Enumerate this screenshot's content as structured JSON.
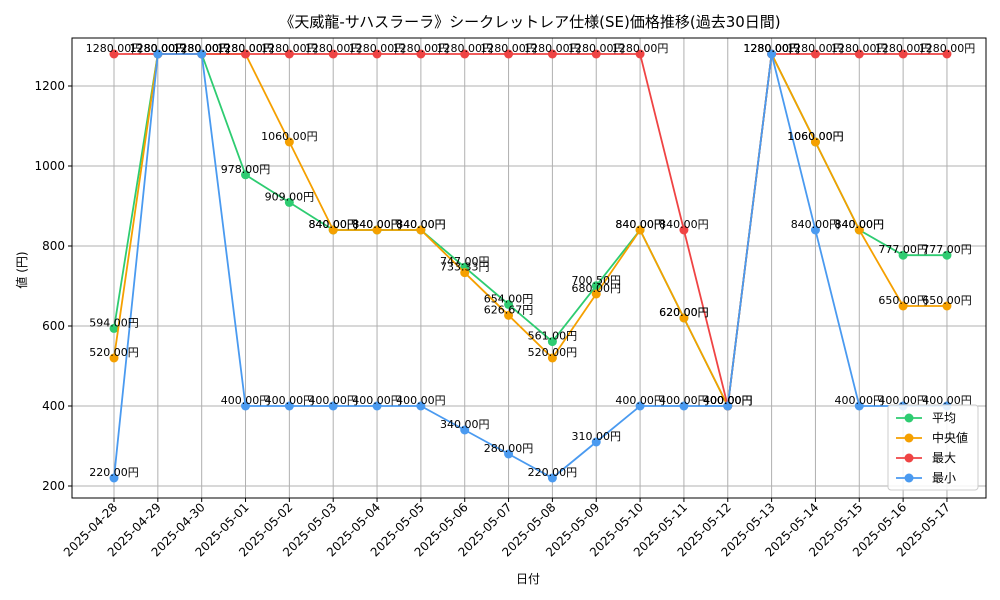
{
  "chart_data": {
    "type": "line",
    "title": "《天威龍-サハスラーラ》シークレットレア仕様(SE)価格推移(過去30日間)",
    "xlabel": "日付",
    "ylabel": "値 (円)",
    "ylim": [
      170,
      1320
    ],
    "yticks": [
      200,
      400,
      600,
      800,
      1000,
      1200
    ],
    "grid": true,
    "legend_position": "lower-right",
    "label_suffix": "円",
    "categories": [
      "2025-04-28",
      "2025-04-29",
      "2025-04-30",
      "2025-05-01",
      "2025-05-02",
      "2025-05-03",
      "2025-05-04",
      "2025-05-05",
      "2025-05-06",
      "2025-05-07",
      "2025-05-08",
      "2025-05-09",
      "2025-05-10",
      "2025-05-11",
      "2025-05-12",
      "2025-05-13",
      "2025-05-14",
      "2025-05-15",
      "2025-05-16",
      "2025-05-17"
    ],
    "series": [
      {
        "name": "平均",
        "color": "#2ecc71",
        "values": [
          594,
          1280,
          1280,
          978,
          909,
          840,
          840,
          840,
          747,
          654,
          561,
          700.5,
          840,
          620,
          400,
          1280,
          1060,
          840,
          777,
          777
        ],
        "labels": [
          "594.00円",
          "1280.00円",
          "1280.00円",
          "978.00円",
          "909.00円",
          "840.00円",
          "840.00円",
          "840.00円",
          "747.00円",
          "654.00円",
          "561.00円",
          "700.50円",
          "840.00円",
          "620.00円",
          "400.00円",
          "1280.00円",
          "1060.00円",
          "840.00円",
          "777.00円",
          "777.00円"
        ]
      },
      {
        "name": "中央値",
        "color": "#f5a000",
        "values": [
          520,
          1280,
          1280,
          1280,
          1060,
          840,
          840,
          840,
          733.33,
          626.67,
          520,
          680,
          840,
          620,
          400,
          1280,
          1060,
          840,
          650,
          650
        ],
        "labels": [
          "520.00円",
          "1280.00円",
          "1280.00円",
          "1280.00円",
          "1060.00円",
          "840.00円",
          "840.00円",
          "840.00円",
          "733.33円",
          "626.67円",
          "520.00円",
          "680.00円",
          "840.00円",
          "620.00円",
          "400.00円",
          "1280.00円",
          "1060.00円",
          "840.00円",
          "650.00円",
          "650.00円"
        ]
      },
      {
        "name": "最大",
        "color": "#ef4444",
        "values": [
          1280,
          1280,
          1280,
          1280,
          1280,
          1280,
          1280,
          1280,
          1280,
          1280,
          1280,
          1280,
          1280,
          840,
          400,
          1280,
          1280,
          1280,
          1280,
          1280
        ],
        "labels": [
          "1280.00円",
          "1280.00円",
          "1280.00円",
          "1280.00円",
          "1280.00円",
          "1280.00円",
          "1280.00円",
          "1280.00円",
          "1280.00円",
          "1280.00円",
          "1280.00円",
          "1280.00円",
          "1280.00円",
          "840.00円",
          "400.00円",
          "1280.00円",
          "1280.00円",
          "1280.00円",
          "1280.00円",
          "1280.00円"
        ]
      },
      {
        "name": "最小",
        "color": "#4a9af0",
        "values": [
          220,
          1280,
          1280,
          400,
          400,
          400,
          400,
          400,
          340,
          280,
          220,
          310,
          400,
          400,
          400,
          1280,
          840,
          400,
          400,
          400
        ],
        "labels": [
          "220.00円",
          "1280.00円",
          "1280.00円",
          "400.00円",
          "400.00円",
          "400.00円",
          "400.00円",
          "400.00円",
          "340.00円",
          "280.00円",
          "220.00円",
          "310.00円",
          "400.00円",
          "400.00円",
          "400.00円",
          "1280.00円",
          "840.00円",
          "400.00円",
          "400.00円",
          "400.00円"
        ]
      }
    ]
  }
}
